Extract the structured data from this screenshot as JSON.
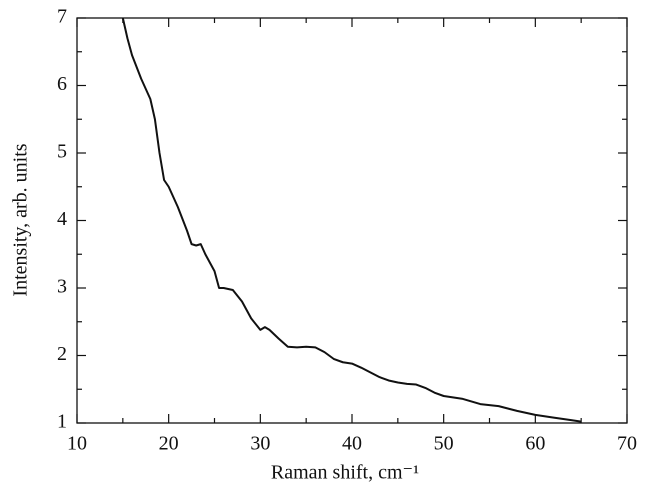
{
  "chart_data": {
    "type": "line",
    "xlabel": "Raman shift, cm⁻¹",
    "ylabel": "Intensity, arb. units",
    "x": [
      15,
      15.5,
      16,
      17,
      18,
      18.5,
      19,
      19.5,
      20,
      21,
      22,
      22.5,
      23,
      23.5,
      24,
      25,
      25.5,
      26,
      27,
      28,
      29,
      30,
      30.5,
      31,
      32,
      33,
      34,
      35,
      36,
      37,
      38,
      39,
      40,
      41,
      42,
      43,
      44,
      45,
      46,
      47,
      48,
      49,
      50,
      52,
      54,
      56,
      58,
      60,
      62,
      64,
      65
    ],
    "values": [
      7.0,
      6.7,
      6.45,
      6.1,
      5.8,
      5.5,
      5.0,
      4.6,
      4.5,
      4.2,
      3.85,
      3.65,
      3.63,
      3.65,
      3.5,
      3.25,
      3.0,
      3.0,
      2.97,
      2.8,
      2.55,
      2.38,
      2.42,
      2.38,
      2.25,
      2.13,
      2.12,
      2.13,
      2.12,
      2.05,
      1.95,
      1.9,
      1.88,
      1.82,
      1.75,
      1.68,
      1.63,
      1.6,
      1.58,
      1.57,
      1.52,
      1.45,
      1.4,
      1.36,
      1.28,
      1.25,
      1.18,
      1.12,
      1.08,
      1.04,
      1.02
    ],
    "color": "#111111",
    "xlim": [
      10,
      70
    ],
    "xticks": [
      10,
      20,
      30,
      40,
      50,
      60,
      70
    ],
    "xminorticks": [
      15,
      25,
      35,
      45,
      55,
      65
    ],
    "ylim": [
      1,
      7
    ],
    "yticks": [
      1,
      2,
      3,
      4,
      5,
      6,
      7
    ],
    "yminorticks": [
      1.5,
      2.5,
      3.5,
      4.5,
      5.5,
      6.5
    ],
    "grid": false
  }
}
